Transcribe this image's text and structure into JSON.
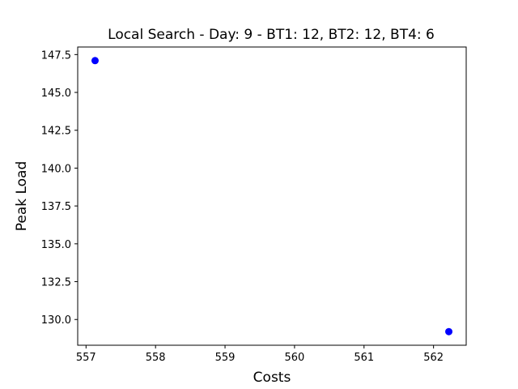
{
  "chart_data": {
    "type": "scatter",
    "title": "Local Search - Day: 9 - BT1: 12, BT2: 12, BT4: 6",
    "xlabel": "Costs",
    "ylabel": "Peak Load",
    "xlim": [
      556.88,
      562.47
    ],
    "ylim": [
      128.3,
      148.0
    ],
    "x_ticks": [
      557,
      558,
      559,
      560,
      561,
      562
    ],
    "x_tick_labels": [
      "557",
      "558",
      "559",
      "560",
      "561",
      "562"
    ],
    "y_ticks": [
      130.0,
      132.5,
      135.0,
      137.5,
      140.0,
      142.5,
      145.0,
      147.5
    ],
    "y_tick_labels": [
      "130.0",
      "132.5",
      "135.0",
      "137.5",
      "140.0",
      "142.5",
      "145.0",
      "147.5"
    ],
    "grid": false,
    "series": [
      {
        "color": "#0000ff",
        "points": [
          {
            "x": 557.13,
            "y": 147.1
          },
          {
            "x": 562.22,
            "y": 129.2
          }
        ]
      }
    ]
  }
}
